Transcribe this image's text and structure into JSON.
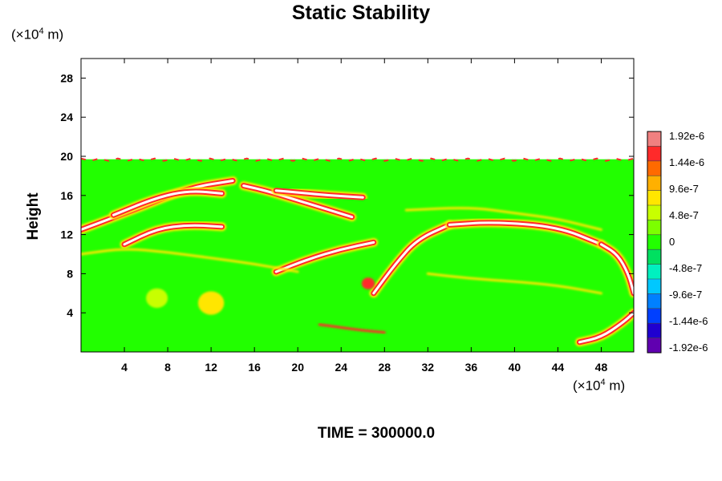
{
  "chart_data": {
    "type": "heatmap",
    "title": "Static Stability",
    "ylabel": "Height",
    "unit_prefix": "(×10",
    "unit_exp": "4",
    "unit_suffix": " m)",
    "footer": "TIME = 300000.0",
    "xlim": [
      0,
      51
    ],
    "ylim": [
      0,
      30
    ],
    "xticks": [
      4,
      8,
      12,
      16,
      20,
      24,
      28,
      32,
      36,
      40,
      44,
      48
    ],
    "yticks": [
      4,
      8,
      12,
      16,
      20,
      24,
      28
    ],
    "colorbar": {
      "labels": [
        "1.92e-6",
        "1.44e-6",
        "9.6e-7",
        "4.8e-7",
        "0",
        "-4.8e-7",
        "-9.6e-7",
        "-1.44e-6",
        "-1.92e-6"
      ],
      "colors": [
        "#f08080",
        "#ff2a2a",
        "#ff6a00",
        "#ffb000",
        "#ffe600",
        "#c8ff00",
        "#7cff00",
        "#22ff00",
        "#00e060",
        "#00f0c0",
        "#00c8ff",
        "#0080ff",
        "#0040ff",
        "#2000d0",
        "#6000b0"
      ]
    },
    "field": {
      "background_color": "#22ff00",
      "top_height": 19.7,
      "bands": [
        {
          "type": "arc",
          "x": [
            0,
            6,
            10,
            14
          ],
          "y": [
            12.5,
            15,
            16.8,
            17.5
          ],
          "color": "#ff2a2a",
          "inner": "#ffffff"
        },
        {
          "type": "arc",
          "x": [
            3,
            7,
            10,
            13
          ],
          "y": [
            14,
            15.8,
            16.5,
            16.2
          ],
          "color": "#ff2a2a",
          "inner": "#ffffff"
        },
        {
          "type": "arc",
          "x": [
            4,
            7,
            10,
            13
          ],
          "y": [
            11,
            12.6,
            13,
            12.8
          ],
          "color": "#ff2a2a",
          "inner": "#ffffff"
        },
        {
          "type": "arc",
          "x": [
            15,
            17,
            20,
            25
          ],
          "y": [
            17,
            16.5,
            15.5,
            13.8
          ],
          "color": "#ff2a2a",
          "inner": "#ffffff"
        },
        {
          "type": "arc",
          "x": [
            18,
            20,
            23,
            26
          ],
          "y": [
            16.5,
            16.3,
            16,
            15.8
          ],
          "color": "#ff2a2a",
          "inner": "#ffffff"
        },
        {
          "type": "arc",
          "x": [
            18,
            21,
            24,
            27
          ],
          "y": [
            8.2,
            9.5,
            10.5,
            11.2
          ],
          "color": "#ff2a2a",
          "inner": "#ffffff"
        },
        {
          "type": "arc",
          "x": [
            27,
            29,
            31,
            34
          ],
          "y": [
            6,
            9,
            11.5,
            13
          ],
          "color": "#ff2a2a",
          "inner": "#ffffff"
        },
        {
          "type": "arc",
          "x": [
            34,
            38,
            44,
            48
          ],
          "y": [
            13,
            13.3,
            12.8,
            11
          ],
          "color": "#ff2a2a",
          "inner": "#ffffff"
        },
        {
          "type": "arc",
          "x": [
            48,
            49.5,
            50.5,
            51
          ],
          "y": [
            11,
            10,
            8,
            6
          ],
          "color": "#ff2a2a",
          "inner": "#ffffff"
        },
        {
          "type": "arc",
          "x": [
            46,
            48,
            50,
            51
          ],
          "y": [
            1,
            1.5,
            3,
            4
          ],
          "color": "#ff2a2a",
          "inner": "#ffffff"
        },
        {
          "type": "line",
          "x": [
            0,
            4,
            8,
            12,
            16,
            20
          ],
          "y": [
            10,
            10.6,
            10.2,
            9.6,
            9,
            8.2
          ],
          "color": "#ffe600"
        },
        {
          "type": "line",
          "x": [
            30,
            36,
            40,
            44,
            48
          ],
          "y": [
            14.5,
            14.8,
            14.2,
            13.6,
            12.5
          ],
          "color": "#ffe600"
        },
        {
          "type": "line",
          "x": [
            22,
            24,
            26,
            28
          ],
          "y": [
            2.8,
            2.5,
            2.2,
            2
          ],
          "color": "#ff2a2a"
        },
        {
          "type": "line",
          "x": [
            32,
            36,
            40,
            44,
            48
          ],
          "y": [
            8,
            7.5,
            7.2,
            6.8,
            6
          ],
          "color": "#ffe600"
        }
      ],
      "blobs": [
        {
          "x": 12,
          "y": 5,
          "r": 1.2,
          "color": "#ffe600"
        },
        {
          "x": 7,
          "y": 5.5,
          "r": 1,
          "color": "#c8ff00"
        },
        {
          "x": 26.5,
          "y": 7,
          "r": 0.6,
          "color": "#ff2a2a"
        }
      ]
    }
  }
}
